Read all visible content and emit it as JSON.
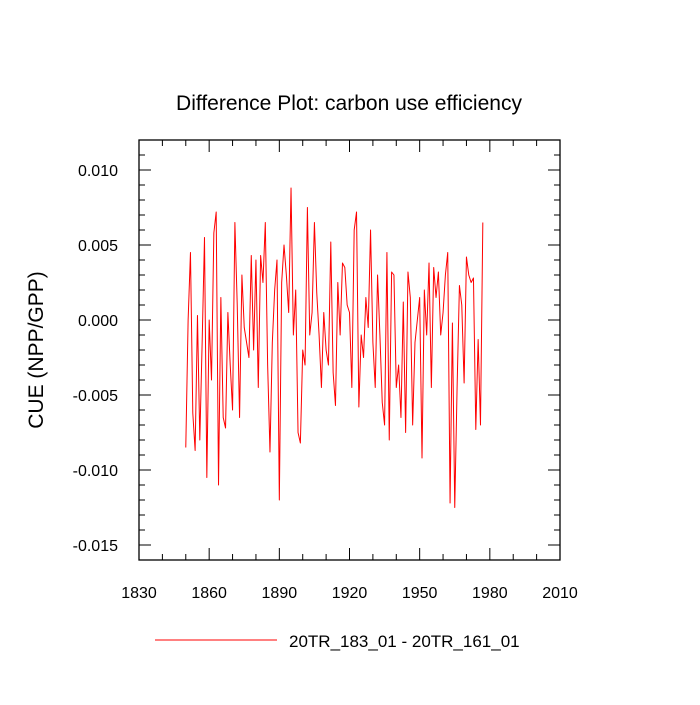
{
  "chart_data": {
    "type": "line",
    "title": "Difference Plot: carbon use efficiency",
    "xlabel": "",
    "ylabel": "CUE  (NPP/GPP)",
    "xlim": [
      1830,
      2010
    ],
    "ylim": [
      -0.016,
      0.012
    ],
    "xticks": [
      1830,
      1860,
      1890,
      1920,
      1950,
      1980,
      2010
    ],
    "xtick_labels": [
      "1830",
      "1860",
      "1890",
      "1920",
      "1950",
      "1980",
      "2010"
    ],
    "yticks": [
      -0.015,
      -0.01,
      -0.005,
      0.0,
      0.005,
      0.01
    ],
    "ytick_labels": [
      "-0.015",
      "-0.010",
      "-0.005",
      "0.000",
      "0.005",
      "0.010"
    ],
    "grid": false,
    "legend_position": "bottom",
    "series": [
      {
        "name": "20TR_183_01 - 20TR_161_01",
        "color": "#ff0000",
        "x_start": 1850,
        "x_step": 1,
        "values": [
          -0.0085,
          0.0,
          0.0045,
          -0.0062,
          -0.0087,
          0.0003,
          -0.008,
          -0.0015,
          0.0055,
          -0.0105,
          0.0,
          -0.004,
          0.0058,
          0.0072,
          -0.011,
          0.0015,
          -0.0065,
          -0.0072,
          0.0005,
          -0.003,
          -0.006,
          0.0065,
          0.001,
          -0.0065,
          0.003,
          -0.0005,
          -0.0015,
          -0.0025,
          0.0043,
          -0.002,
          0.004,
          -0.0045,
          0.0043,
          0.0025,
          0.0065,
          -0.003,
          -0.0088,
          -0.0015,
          0.002,
          0.004,
          -0.012,
          0.0025,
          0.005,
          0.003,
          0.0005,
          0.0088,
          -0.001,
          0.002,
          -0.0075,
          -0.0082,
          -0.002,
          -0.003,
          0.0075,
          -0.001,
          0.0005,
          0.0065,
          0.0018,
          -0.001,
          -0.0045,
          0.0005,
          -0.002,
          -0.003,
          0.0052,
          -0.0035,
          -0.0057,
          0.0025,
          -0.001,
          0.0038,
          0.0035,
          0.001,
          0.0005,
          -0.0045,
          0.006,
          0.0072,
          -0.0058,
          -0.001,
          -0.0025,
          0.0015,
          -0.0005,
          0.006,
          -0.0015,
          -0.0045,
          0.003,
          -0.001,
          -0.0055,
          -0.007,
          0.0045,
          -0.008,
          0.0032,
          0.003,
          -0.0045,
          -0.003,
          -0.0065,
          0.0012,
          -0.0075,
          0.0032,
          0.0015,
          -0.007,
          -0.0015,
          0.0,
          0.0015,
          -0.0092,
          0.002,
          -0.001,
          0.0038,
          -0.0045,
          0.0035,
          0.0015,
          0.0032,
          -0.001,
          0.0005,
          0.003,
          0.0045,
          -0.0122,
          -0.0002,
          -0.0125,
          -0.0045,
          0.0023,
          0.001,
          -0.0042,
          0.0042,
          0.003,
          0.0025,
          0.0028,
          -0.0073,
          -0.0013,
          -0.007,
          0.0065
        ]
      }
    ]
  }
}
